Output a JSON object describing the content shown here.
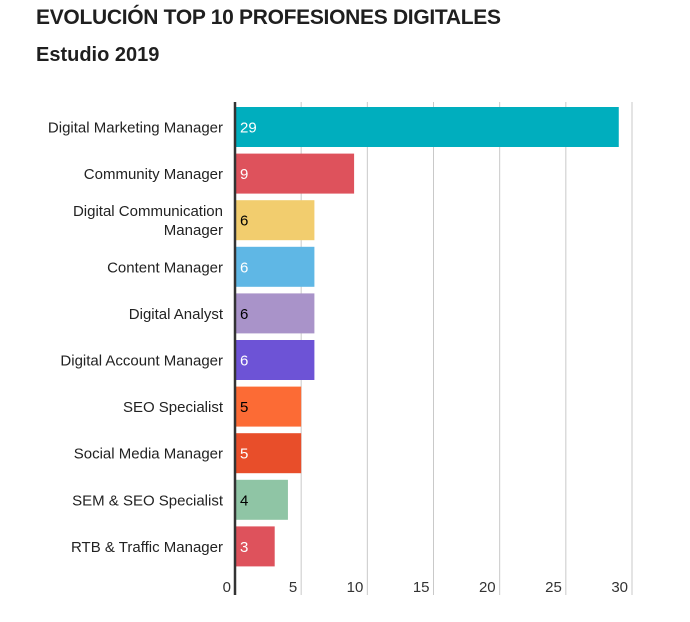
{
  "chart_data": {
    "type": "bar",
    "orientation": "horizontal",
    "title": "EVOLUCIÓN TOP 10 PROFESIONES DIGITALES",
    "subtitle": "Estudio 2019",
    "categories": [
      "Digital Marketing Manager",
      "Community Manager",
      "Digital Communication Manager",
      "Content Manager",
      "Digital Analyst",
      "Digital Account Manager",
      "SEO Specialist",
      "Social Media Manager",
      "SEM & SEO Specialist",
      "RTB & Traffic Manager"
    ],
    "values": [
      29,
      9,
      6,
      6,
      6,
      6,
      5,
      5,
      4,
      3
    ],
    "colors": [
      "#00aebe",
      "#de525c",
      "#f2cd6e",
      "#5fb7e5",
      "#a993c9",
      "#6d53d6",
      "#fc6b35",
      "#e84e2a",
      "#8fc5a5",
      "#de525c"
    ],
    "label_colors": [
      "#ffffff",
      "#ffffff",
      "#000000",
      "#ffffff",
      "#000000",
      "#ffffff",
      "#000000",
      "#ffffff",
      "#000000",
      "#ffffff"
    ],
    "xlim": [
      0,
      30
    ],
    "xticks": [
      0,
      5,
      10,
      15,
      20,
      25,
      30
    ],
    "grid": true,
    "legend": "none"
  }
}
